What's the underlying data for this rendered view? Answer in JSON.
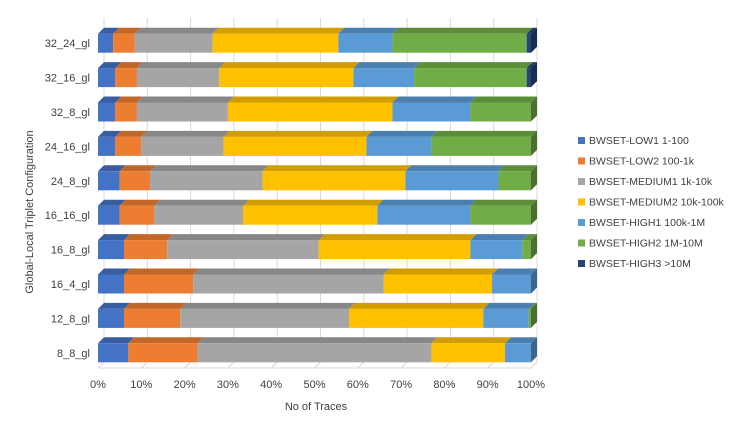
{
  "chart_data": {
    "type": "bar",
    "orientation": "horizontal",
    "stacked": "percent",
    "style": "3d",
    "title": "",
    "xlabel": "No of Traces",
    "ylabel": "Global-Local Triplet Configuration",
    "xlim": [
      0,
      100
    ],
    "x_ticks": [
      "0%",
      "10%",
      "20%",
      "30%",
      "40%",
      "50%",
      "60%",
      "70%",
      "80%",
      "90%",
      "100%"
    ],
    "grid": "vertical",
    "legend_position": "right",
    "categories": [
      "8_8_gl",
      "12_8_gl",
      "16_4_gl",
      "16_8_gl",
      "16_16_gl",
      "24_8_gl",
      "24_16_gl",
      "32_8_gl",
      "32_16_gl",
      "32_24_gl"
    ],
    "series": [
      {
        "name": "BWSET-LOW1 1-100",
        "color": "#4472c4",
        "values": [
          7,
          6,
          6,
          6,
          5,
          5,
          4,
          4,
          4,
          3.5
        ]
      },
      {
        "name": "BWSET-LOW2 100-1k",
        "color": "#ed7d31",
        "values": [
          16,
          13,
          16,
          10,
          8,
          7,
          6,
          5,
          5,
          5
        ]
      },
      {
        "name": "BWSET-MEDIUM1 1k-10k",
        "color": "#a5a5a5",
        "values": [
          54,
          39,
          44,
          35,
          20.5,
          26,
          19,
          21,
          19,
          18
        ]
      },
      {
        "name": "BWSET-MEDIUM2  10k-100k",
        "color": "#ffc000",
        "values": [
          17,
          31,
          25,
          35,
          31,
          33,
          33,
          38,
          31,
          29
        ]
      },
      {
        "name": "BWSET-HIGH1 100k-1M",
        "color": "#5b9bd5",
        "values": [
          6,
          10.5,
          9,
          12,
          21.5,
          21.5,
          15,
          18,
          14,
          12.5
        ]
      },
      {
        "name": "BWSET-HIGH2 1M-10M",
        "color": "#70ad47",
        "values": [
          0,
          0.5,
          0,
          2,
          14,
          7.5,
          23,
          14,
          26,
          31
        ]
      },
      {
        "name": "BWSET-HIGH3 >10M",
        "color": "#264478",
        "values": [
          0,
          0,
          0,
          0,
          0,
          0,
          0,
          0,
          1,
          1
        ]
      }
    ]
  }
}
